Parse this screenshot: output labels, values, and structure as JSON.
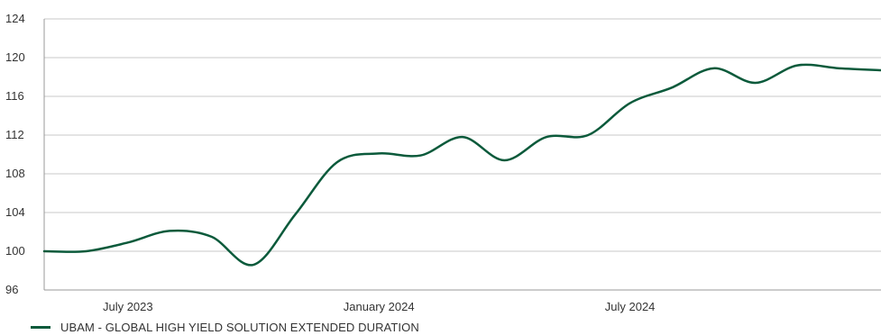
{
  "chart_data": {
    "type": "line",
    "title": "",
    "xlabel": "",
    "ylabel": "",
    "ylim": [
      96,
      124
    ],
    "yticks": [
      "124",
      "120",
      "116",
      "112",
      "108",
      "104",
      "100",
      "96"
    ],
    "xtick_labels": [
      "July 2023",
      "January 2024",
      "July 2024"
    ],
    "grid": true,
    "legend_placement": "bottom-left",
    "colors": {
      "series": "#0b5a3b",
      "grid": "#c8c8c8",
      "axis": "#999999"
    },
    "series": [
      {
        "name": "UBAM - GLOBAL HIGH YIELD SOLUTION EXTENDED DURATION",
        "x": [
          "2023-05",
          "2023-06",
          "2023-07",
          "2023-08",
          "2023-09",
          "2023-10",
          "2023-11",
          "2023-12",
          "2024-01",
          "2024-02",
          "2024-03",
          "2024-04",
          "2024-05",
          "2024-06",
          "2024-07",
          "2024-08",
          "2024-09",
          "2024-10",
          "2024-11",
          "2024-12",
          "2025-01"
        ],
        "values": [
          100.0,
          100.0,
          100.9,
          102.1,
          101.5,
          98.6,
          103.8,
          109.2,
          110.1,
          109.9,
          111.8,
          109.4,
          111.8,
          112.0,
          115.3,
          116.9,
          118.9,
          117.4,
          119.2,
          118.9,
          118.7
        ]
      }
    ]
  },
  "legend": {
    "label": "UBAM - GLOBAL HIGH YIELD SOLUTION EXTENDED DURATION"
  }
}
